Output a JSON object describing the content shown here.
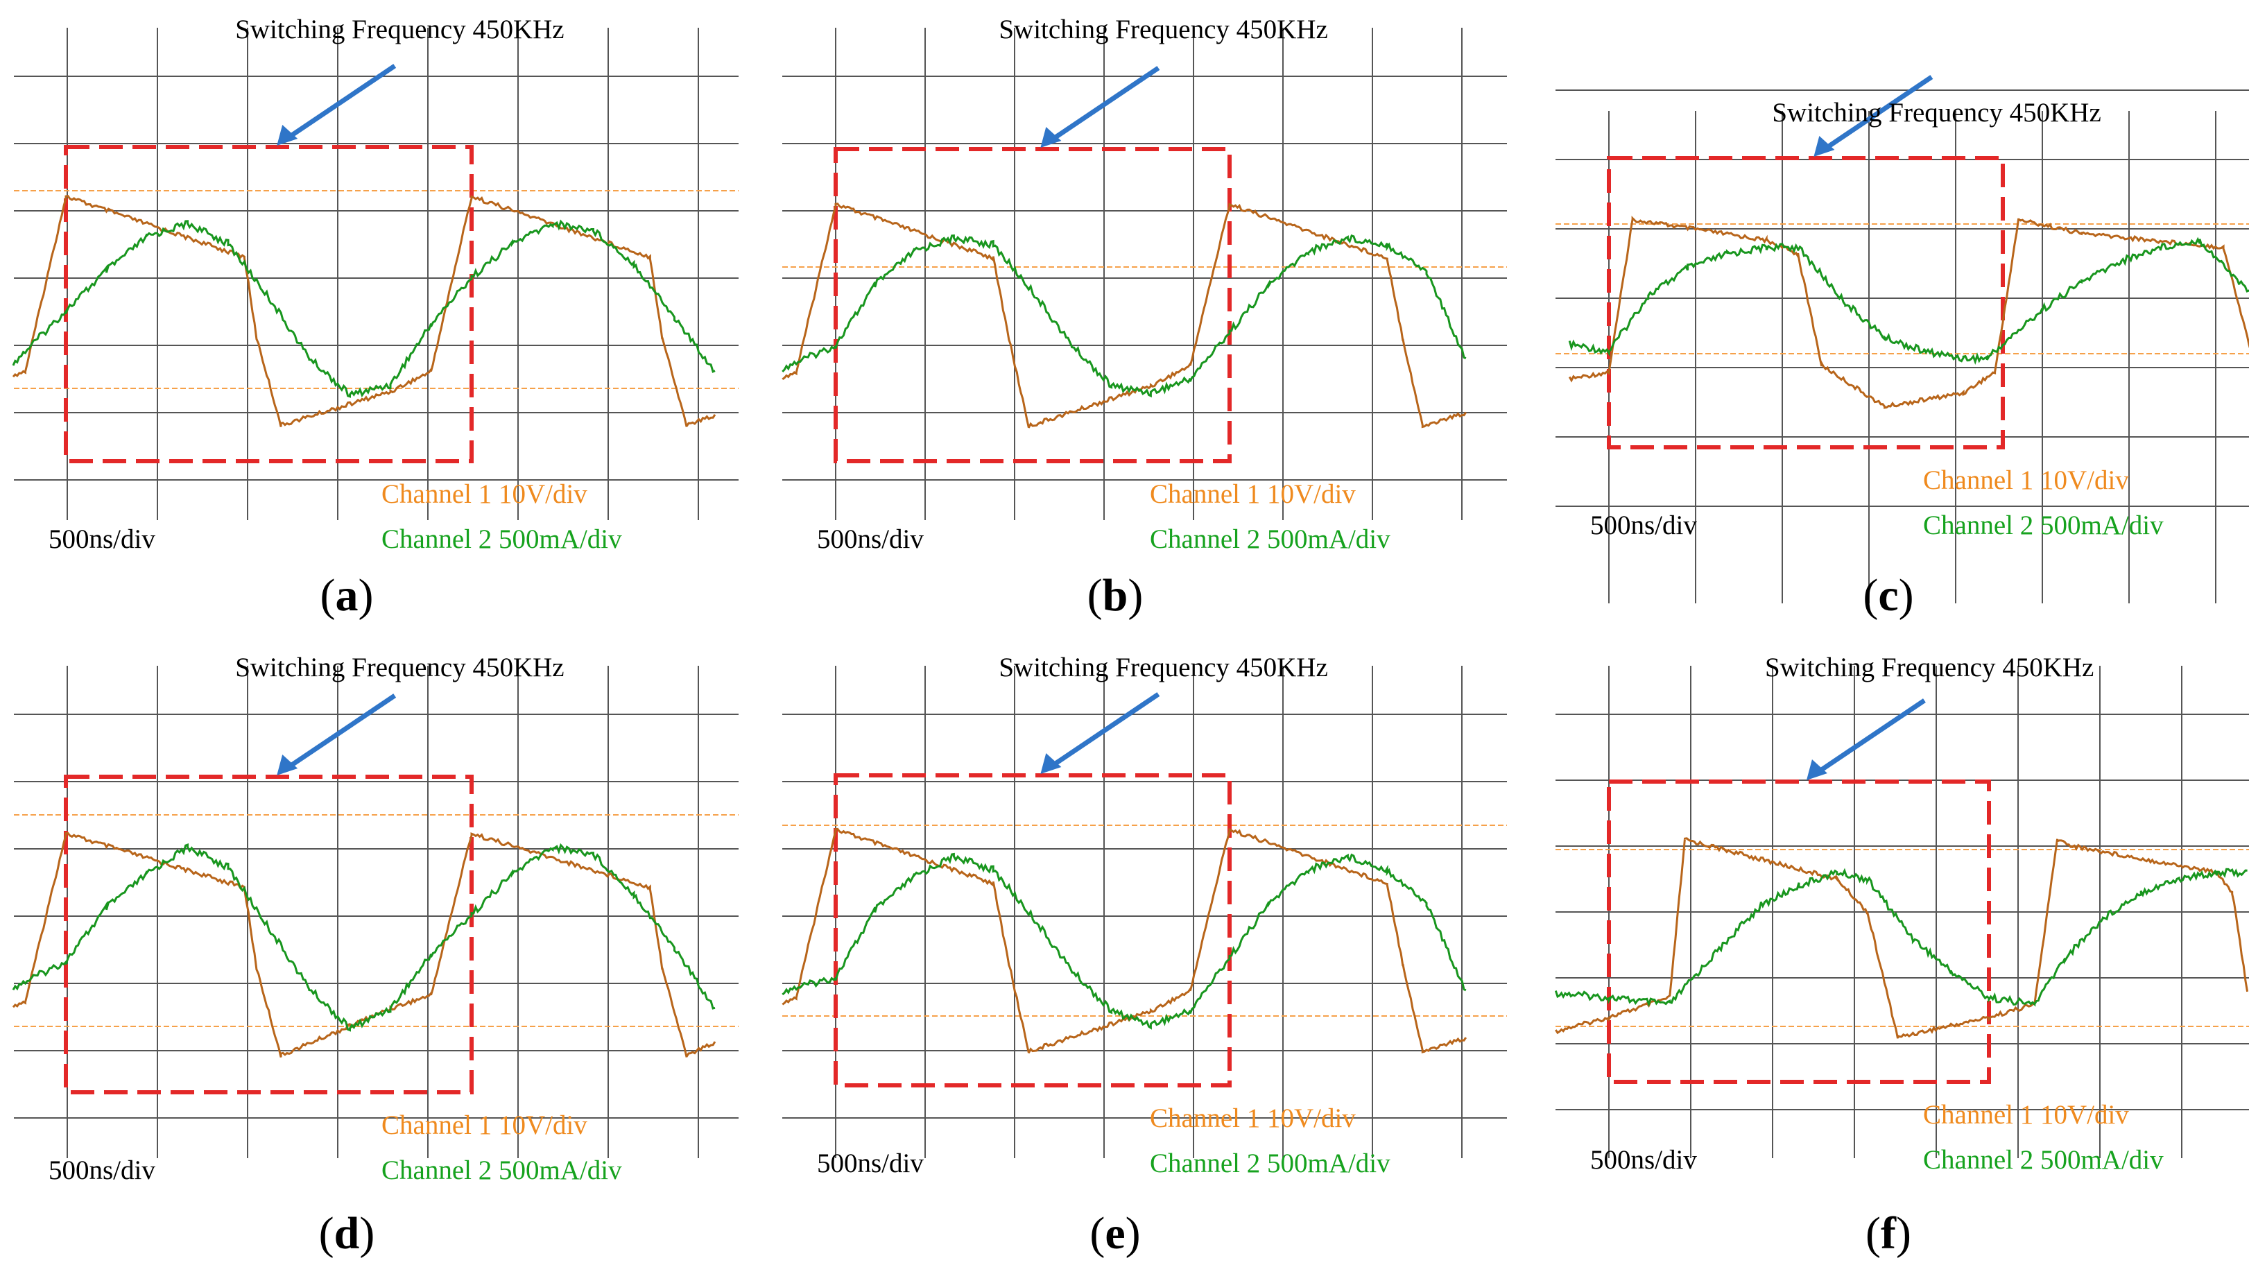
{
  "chart_data": [
    {
      "type": "line",
      "panel_label": "a",
      "title": "Switching Frequency 450KHz",
      "time_scale": "500ns/div",
      "legend": [
        {
          "name": "Channel 1 10V/div",
          "color": "#ef8a1e"
        },
        {
          "name": "Channel 2 500mA/div",
          "color": "#16a21e"
        }
      ],
      "series": [
        {
          "name": "Channel 1",
          "x": [
            -1,
            -0.5,
            0,
            2.2,
            2.35,
            2.65,
            4.0,
            4.5,
            5,
            7.2,
            7.35,
            7.65,
            8.0
          ],
          "y": [
            -1.2,
            -1.0,
            1.6,
            0.7,
            -0.5,
            -1.8,
            -1.3,
            -1.0,
            1.6,
            0.7,
            -0.5,
            -1.8,
            -1.65
          ]
        },
        {
          "name": "Channel 2",
          "x": [
            -1,
            0,
            0.5,
            1,
            1.5,
            2,
            2.5,
            3,
            3.5,
            4,
            4.5,
            5,
            5.5,
            6,
            6.5,
            7,
            7.5,
            8
          ],
          "y": [
            -1.3,
            -0.1,
            0.5,
            1.0,
            1.2,
            0.9,
            0.1,
            -0.8,
            -1.35,
            -1.2,
            -0.3,
            0.4,
            0.9,
            1.2,
            1.1,
            0.6,
            -0.2,
            -1.0
          ]
        }
      ]
    },
    {
      "type": "line",
      "panel_label": "b",
      "title": "Switching Frequency 450KHz",
      "time_scale": "500ns/div",
      "legend": [
        {
          "name": "Channel 1 10V/div",
          "color": "#ef8a1e"
        },
        {
          "name": "Channel 2 500mA/div",
          "color": "#16a21e"
        }
      ],
      "series": [
        {
          "name": "Channel 1",
          "x": [
            -1,
            -0.5,
            0,
            2.0,
            2.2,
            2.45,
            4.0,
            4.5,
            5,
            7.0,
            7.2,
            7.45,
            8.0
          ],
          "y": [
            -1.2,
            -1.0,
            1.5,
            0.7,
            -0.5,
            -1.8,
            -1.2,
            -0.9,
            1.5,
            0.7,
            -0.5,
            -1.8,
            -1.6
          ]
        },
        {
          "name": "Channel 2",
          "x": [
            -1,
            0,
            0.5,
            1,
            1.5,
            2,
            2.5,
            3,
            3.5,
            4,
            4.5,
            5,
            5.5,
            6,
            6.5,
            7,
            7.5,
            8
          ],
          "y": [
            -1.1,
            -0.6,
            0.3,
            0.8,
            1.0,
            0.9,
            0.2,
            -0.6,
            -1.2,
            -1.3,
            -1.1,
            -0.4,
            0.3,
            0.8,
            1.0,
            0.9,
            0.5,
            -0.8
          ]
        }
      ]
    },
    {
      "type": "line",
      "panel_label": "c",
      "title": "Switching Frequency 450KHz",
      "time_scale": "500ns/div",
      "legend": [
        {
          "name": "Channel 1 10V/div",
          "color": "#ef8a1e"
        },
        {
          "name": "Channel 2 500mA/div",
          "color": "#16a21e"
        }
      ],
      "series": [
        {
          "name": "Channel 1",
          "x": [
            -0.5,
            0,
            0.3,
            2.0,
            2.4,
            2.7,
            3.5,
            4.5,
            4.9,
            5.2,
            6.0,
            7.8,
            8.2,
            8.4
          ],
          "y": [
            -1.1,
            -1.0,
            1.2,
            0.9,
            0.7,
            -0.9,
            -1.5,
            -1.3,
            -1.0,
            1.2,
            1.0,
            0.8,
            -0.9,
            -1.4
          ]
        },
        {
          "name": "Channel 2",
          "x": [
            -0.5,
            0,
            0.5,
            1,
            1.5,
            2,
            2.4,
            3,
            3.5,
            4,
            4.5,
            4.8,
            5.5,
            6,
            6.5,
            7,
            7.5,
            8,
            8.5
          ],
          "y": [
            -0.6,
            -0.7,
            0.1,
            0.5,
            0.7,
            0.8,
            0.8,
            0.0,
            -0.5,
            -0.7,
            -0.8,
            -0.8,
            -0.1,
            0.3,
            0.6,
            0.8,
            0.9,
            0.3,
            -0.2
          ]
        }
      ]
    },
    {
      "type": "line",
      "panel_label": "d",
      "title": "Switching Frequency 450KHz",
      "time_scale": "500ns/div",
      "legend": [
        {
          "name": "Channel 1 10V/div",
          "color": "#ef8a1e"
        },
        {
          "name": "Channel 2 500mA/div",
          "color": "#16a21e"
        }
      ],
      "series": [
        {
          "name": "Channel 1",
          "x": [
            -1,
            -0.5,
            0,
            2.2,
            2.35,
            2.65,
            4.0,
            4.5,
            5,
            7.2,
            7.35,
            7.65,
            8.0
          ],
          "y": [
            -1.2,
            -1.0,
            1.5,
            0.7,
            -0.5,
            -1.8,
            -1.1,
            -0.9,
            1.5,
            0.7,
            -0.5,
            -1.8,
            -1.6
          ]
        },
        {
          "name": "Channel 2",
          "x": [
            -1,
            0,
            0.5,
            1,
            1.5,
            2,
            2.5,
            3,
            3.5,
            4,
            4.5,
            5,
            5.5,
            6,
            6.5,
            7,
            7.5,
            8
          ],
          "y": [
            -1.0,
            -0.4,
            0.4,
            0.9,
            1.3,
            1.0,
            0.1,
            -0.8,
            -1.4,
            -1.1,
            -0.3,
            0.3,
            0.9,
            1.3,
            1.2,
            0.6,
            -0.2,
            -1.1
          ]
        }
      ]
    },
    {
      "type": "line",
      "panel_label": "e",
      "title": "Switching Frequency 450KHz",
      "time_scale": "500ns/div",
      "legend": [
        {
          "name": "Channel 1 10V/div",
          "color": "#ef8a1e"
        },
        {
          "name": "Channel 2 500mA/div",
          "color": "#16a21e"
        }
      ],
      "series": [
        {
          "name": "Channel 1",
          "x": [
            -1,
            -0.5,
            0,
            2.0,
            2.2,
            2.45,
            4.0,
            4.5,
            5,
            7.0,
            7.2,
            7.45,
            8.0
          ],
          "y": [
            -1.2,
            -1.0,
            1.5,
            0.7,
            -0.5,
            -1.8,
            -1.2,
            -0.9,
            1.5,
            0.7,
            -0.5,
            -1.8,
            -1.6
          ]
        },
        {
          "name": "Channel 2",
          "x": [
            -1,
            0,
            0.5,
            1,
            1.5,
            2,
            2.5,
            3,
            3.5,
            4,
            4.5,
            5,
            5.5,
            6,
            6.5,
            7,
            7.5,
            8
          ],
          "y": [
            -1.0,
            -0.7,
            0.3,
            0.8,
            1.1,
            0.9,
            0.2,
            -0.6,
            -1.2,
            -1.4,
            -1.2,
            -0.4,
            0.4,
            0.9,
            1.1,
            0.9,
            0.4,
            -0.9
          ]
        }
      ]
    },
    {
      "type": "line",
      "panel_label": "f",
      "title": "Switching Frequency 450KHz",
      "time_scale": "500ns/div",
      "legend": [
        {
          "name": "Channel 1 10V/div",
          "color": "#ef8a1e"
        },
        {
          "name": "Channel 2 500mA/div",
          "color": "#16a21e"
        }
      ],
      "series": [
        {
          "name": "Channel 1",
          "x": [
            -1,
            0,
            0.8,
            1.0,
            3.0,
            3.4,
            3.8,
            5.0,
            5.6,
            5.9,
            6.1,
            8.0,
            8.2,
            8.4
          ],
          "y": [
            -1.6,
            -1.3,
            -1.0,
            1.4,
            0.8,
            0.3,
            -1.6,
            -1.3,
            -1.1,
            1.4,
            1.3,
            0.9,
            0.6,
            -0.9
          ]
        },
        {
          "name": "Channel 2",
          "x": [
            -1,
            0,
            0.8,
            1.5,
            2,
            2.5,
            3,
            3.4,
            4,
            4.5,
            5,
            5.6,
            6,
            6.5,
            7,
            7.5,
            8,
            8.4
          ],
          "y": [
            -0.9,
            -1.0,
            -1.1,
            -0.2,
            0.4,
            0.7,
            0.9,
            0.8,
            -0.1,
            -0.6,
            -1.0,
            -1.1,
            -0.4,
            0.2,
            0.6,
            0.8,
            0.9,
            0.9
          ]
        }
      ]
    }
  ]
}
